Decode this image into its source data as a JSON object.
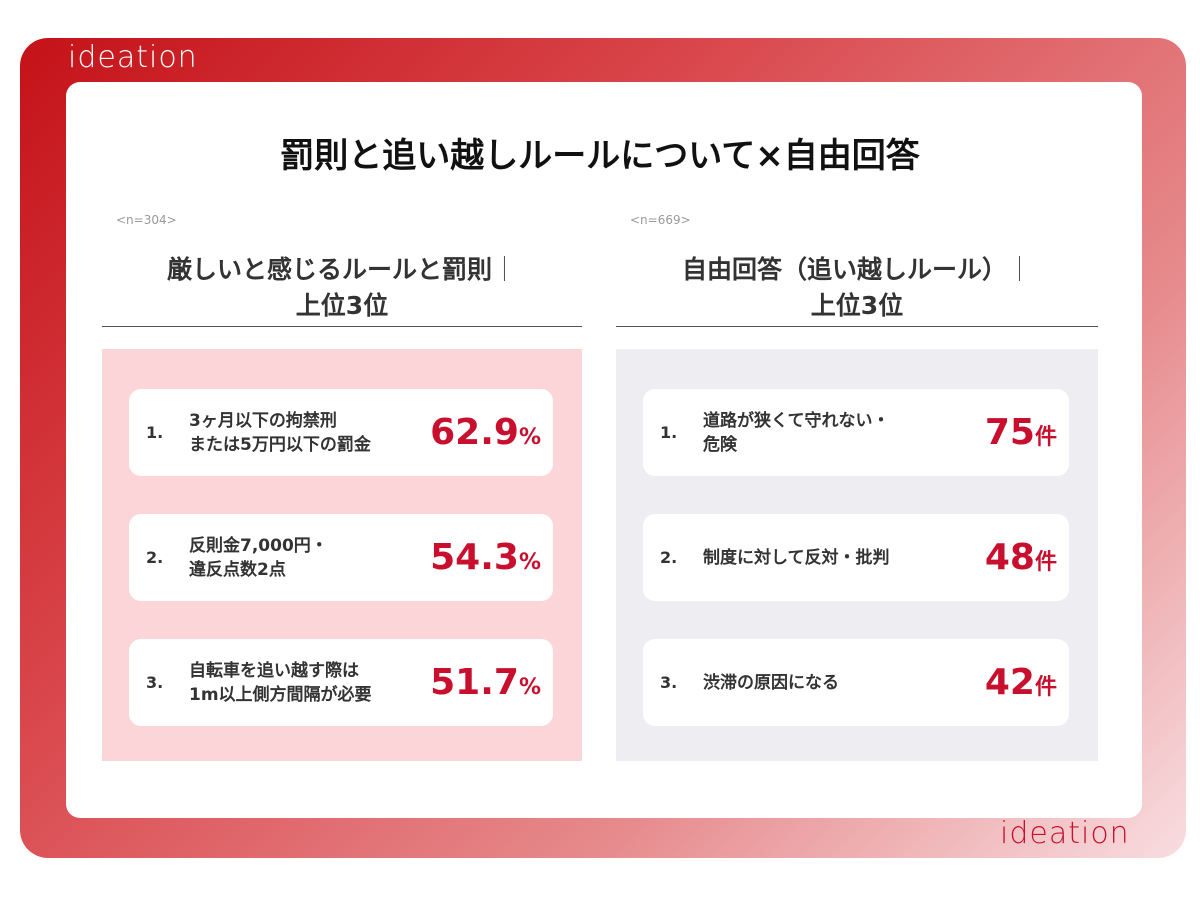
{
  "brand": {
    "logo": "ideation"
  },
  "title": "罰則と追い越しルールについて×自由回答",
  "left": {
    "sample": "<n=304>",
    "heading_line1": "厳しいと感じるルールと罰則",
    "heading_line2": "上位3位",
    "separator": "｜",
    "items": [
      {
        "rank": "1.",
        "label": "3ヶ月以下の拘禁刑\nまたは5万円以下の罰金",
        "value": "62.9",
        "unit": "%"
      },
      {
        "rank": "2.",
        "label": "反則金7,000円・\n違反点数2点",
        "value": "54.3",
        "unit": "%"
      },
      {
        "rank": "3.",
        "label": "自転車を追い越す際は\n1m以上側方間隔が必要",
        "value": "51.7",
        "unit": "%"
      }
    ]
  },
  "right": {
    "sample": "<n=669>",
    "heading_line1": "自由回答（追い越しルール）",
    "heading_line2": "上位3位",
    "separator": "｜",
    "items": [
      {
        "rank": "1.",
        "label": "道路が狭くて守れない・\n危険",
        "value": "75",
        "unit": "件"
      },
      {
        "rank": "2.",
        "label": "制度に対して反対・批判",
        "value": "48",
        "unit": "件"
      },
      {
        "rank": "3.",
        "label": "渋滞の原因になる",
        "value": "42",
        "unit": "件"
      }
    ]
  },
  "colors": {
    "accent": "#c8102e",
    "left_panel": "#fbd5d8",
    "right_panel": "#eeeef2"
  }
}
